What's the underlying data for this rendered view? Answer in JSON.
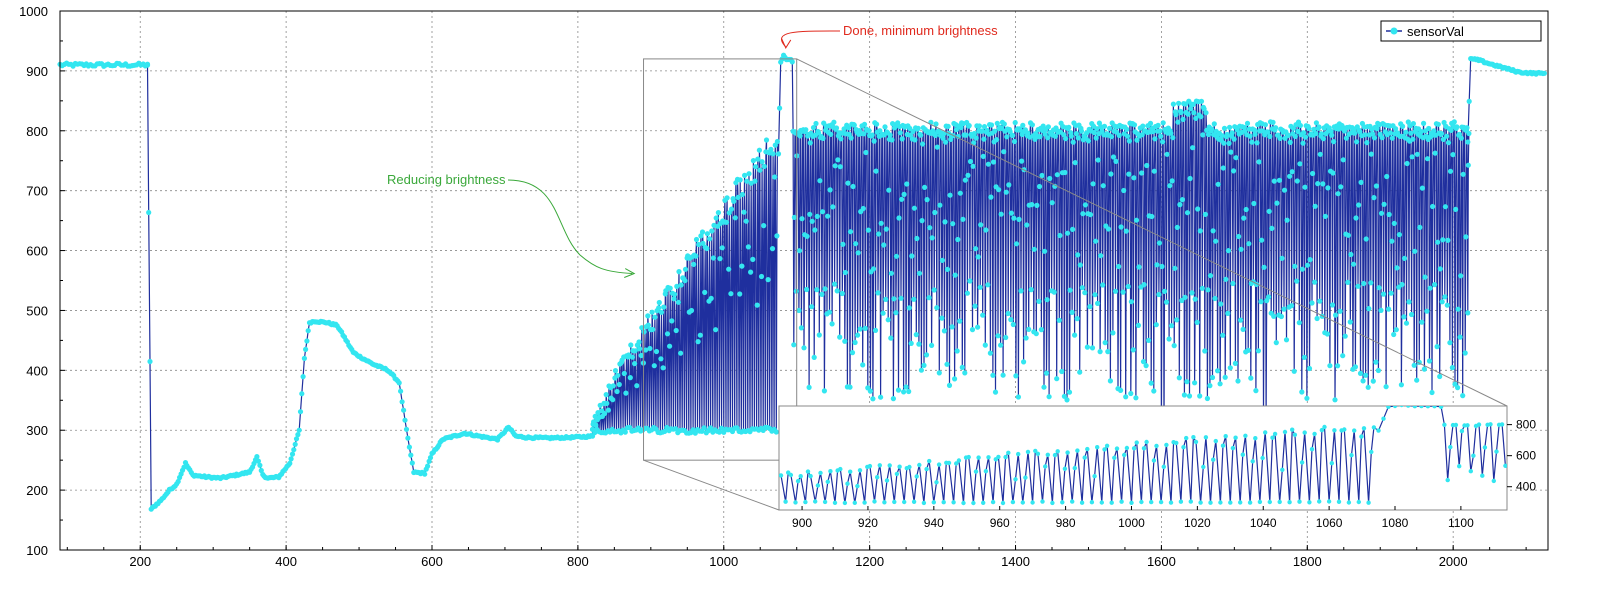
{
  "chart_data": {
    "type": "line",
    "title": "",
    "xlabel": "",
    "ylabel": "",
    "xlim": [
      90,
      2130
    ],
    "ylim": [
      100,
      1000
    ],
    "x_ticks": [
      200,
      400,
      600,
      800,
      1000,
      1200,
      1400,
      1600,
      1800,
      2000
    ],
    "y_ticks": [
      100,
      200,
      300,
      400,
      500,
      600,
      700,
      800,
      900,
      1000
    ],
    "grid": true,
    "legend": {
      "position": "top-right",
      "entries": [
        "sensorVal"
      ]
    },
    "series": [
      {
        "name": "sensorVal",
        "color": "#33e6f0",
        "line_color": "#1f2f9e",
        "segments": [
          {
            "x_start": 90,
            "x_end": 210,
            "kind": "flat",
            "value": 910
          },
          {
            "x": [
              210,
              215,
              230,
              240,
              250,
              262,
              272,
              290,
              310,
              330,
              350,
              360,
              368,
              375,
              390,
              405,
              418,
              425,
              432,
              440,
              455,
              470,
              480,
              492,
              505,
              520,
              540,
              555,
              565,
              575,
              590,
              600,
              615,
              630,
              645,
              665,
              690,
              705,
              715,
              730,
              760,
              790,
              820
            ],
            "y": [
              910,
              168,
              185,
              200,
              210,
              245,
              225,
              222,
              220,
              225,
              230,
              255,
              225,
              220,
              222,
              245,
              300,
              420,
              480,
              482,
              480,
              475,
              455,
              430,
              420,
              410,
              400,
              380,
              300,
              230,
              228,
              260,
              285,
              290,
              295,
              290,
              285,
              305,
              290,
              288,
              287,
              288,
              290
            ],
            "kind": "path"
          },
          {
            "x_start": 820,
            "x_end": 1090,
            "kind": "oscillating",
            "low": 295,
            "high_start": 320,
            "high_end": 815
          },
          {
            "x": [
              1075,
              1078,
              1082,
              1086,
              1090,
              1094
            ],
            "y": [
              760,
              915,
              925,
              918,
              920,
              915
            ],
            "kind": "path"
          },
          {
            "x_start": 1095,
            "x_end": 2020,
            "kind": "oscillating",
            "low": 350,
            "high": 815,
            "dips": [
              {
                "x": 1600,
                "y": 300
              },
              {
                "x": 1740,
                "y": 320
              }
            ]
          },
          {
            "x": [
              2020,
              2024,
              2035,
              2050,
              2070,
              2090,
              2110,
              2125
            ],
            "y": [
              780,
              920,
              918,
              912,
              905,
              898,
              896,
              896
            ],
            "kind": "path"
          }
        ]
      }
    ],
    "annotations": [
      {
        "text": "Reducing brightness",
        "color": "#3aa83a",
        "arrow_to": {
          "x": 880,
          "y": 560
        }
      },
      {
        "text": "Done, minimum brightness",
        "color": "#e02a1e",
        "arrow_to": {
          "x": 1085,
          "y": 935
        }
      }
    ],
    "inset": {
      "source_xlim": [
        890,
        1100
      ],
      "source_ylim": [
        250,
        920
      ],
      "xlim": [
        893,
        1114
      ],
      "ylim": [
        250,
        920
      ],
      "x_ticks": [
        900,
        920,
        940,
        960,
        980,
        1000,
        1020,
        1040,
        1060,
        1080,
        1100
      ],
      "y_ticks": [
        400,
        600,
        800
      ],
      "y_axis_side": "right"
    }
  }
}
